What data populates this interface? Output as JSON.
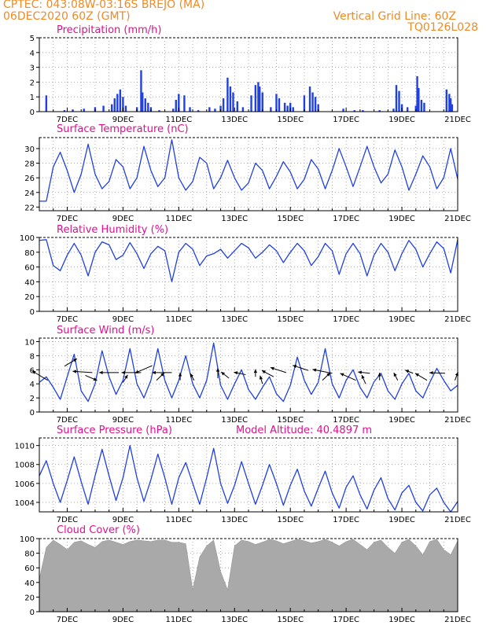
{
  "header": {
    "line1": "CPTEC:   043:08W-03:16S   BREJO (MA)",
    "line2_left": "06DEC2020 60Z (GMT)",
    "line2_right": "Vertical Grid Line: 60Z",
    "line3_right": "TQ0126L028"
  },
  "colors": {
    "header": "#f08a24",
    "title": "#e0108e",
    "series": "#2040e0",
    "cloud": "#a9a9a9",
    "arrow": "#000000"
  },
  "x_axis_labels": [
    "7DEC",
    "9DEC",
    "11DEC",
    "13DEC",
    "15DEC",
    "17DEC",
    "19DEC",
    "21DEC"
  ],
  "chart_data": [
    {
      "type": "bar",
      "title": "Precipitation (mm/h)",
      "ylim": [
        0,
        5
      ],
      "yticks": [
        0,
        1,
        2,
        3,
        4,
        5
      ],
      "x_range_days": [
        6.0,
        21.0
      ],
      "grid": true,
      "values": [
        [
          6.25,
          1.1
        ],
        [
          6.9,
          0.1
        ],
        [
          7.2,
          0.15
        ],
        [
          7.6,
          0.2
        ],
        [
          8.0,
          0.3
        ],
        [
          8.3,
          0.4
        ],
        [
          8.6,
          0.5
        ],
        [
          8.7,
          0.9
        ],
        [
          8.8,
          1.2
        ],
        [
          8.9,
          1.5
        ],
        [
          9.0,
          1.0
        ],
        [
          9.1,
          0.4
        ],
        [
          9.5,
          0.3
        ],
        [
          9.65,
          2.8
        ],
        [
          9.7,
          1.3
        ],
        [
          9.8,
          0.9
        ],
        [
          9.9,
          0.6
        ],
        [
          10.0,
          0.3
        ],
        [
          10.3,
          0.1
        ],
        [
          10.8,
          0.2
        ],
        [
          10.9,
          0.8
        ],
        [
          11.0,
          1.2
        ],
        [
          11.2,
          1.1
        ],
        [
          11.4,
          0.3
        ],
        [
          11.7,
          0.1
        ],
        [
          12.1,
          0.3
        ],
        [
          12.3,
          0.2
        ],
        [
          12.5,
          0.4
        ],
        [
          12.6,
          0.9
        ],
        [
          12.75,
          2.3
        ],
        [
          12.85,
          1.7
        ],
        [
          12.95,
          1.3
        ],
        [
          13.1,
          0.7
        ],
        [
          13.3,
          0.3
        ],
        [
          13.6,
          1.1
        ],
        [
          13.75,
          1.8
        ],
        [
          13.85,
          2.0
        ],
        [
          13.9,
          1.7
        ],
        [
          14.0,
          1.3
        ],
        [
          14.3,
          0.3
        ],
        [
          14.5,
          1.2
        ],
        [
          14.6,
          0.9
        ],
        [
          14.8,
          0.6
        ],
        [
          14.9,
          0.4
        ],
        [
          15.0,
          0.6
        ],
        [
          15.1,
          0.3
        ],
        [
          15.5,
          1.1
        ],
        [
          15.7,
          1.7
        ],
        [
          15.8,
          1.3
        ],
        [
          15.9,
          1.0
        ],
        [
          16.0,
          0.5
        ],
        [
          16.9,
          0.2
        ],
        [
          17.3,
          0.1
        ],
        [
          17.6,
          0.1
        ],
        [
          18.2,
          0.1
        ],
        [
          18.7,
          0.2
        ],
        [
          18.8,
          1.8
        ],
        [
          18.9,
          1.4
        ],
        [
          19.0,
          0.5
        ],
        [
          19.2,
          0.3
        ],
        [
          19.5,
          0.4
        ],
        [
          19.55,
          2.4
        ],
        [
          19.6,
          1.6
        ],
        [
          19.7,
          0.8
        ],
        [
          19.8,
          0.6
        ],
        [
          20.6,
          1.5
        ],
        [
          20.7,
          1.2
        ],
        [
          20.75,
          0.9
        ],
        [
          20.8,
          0.5
        ]
      ]
    },
    {
      "type": "line",
      "title": "Surface Temperature (nC)",
      "ylim": [
        21.5,
        31.5
      ],
      "yticks": [
        22,
        24,
        26,
        28,
        30
      ],
      "grid": true,
      "x": [
        6.0,
        6.25,
        6.5,
        6.75,
        7.0,
        7.25,
        7.5,
        7.75,
        8.0,
        8.25,
        8.5,
        8.75,
        9.0,
        9.25,
        9.5,
        9.75,
        10.0,
        10.25,
        10.5,
        10.75,
        11.0,
        11.25,
        11.5,
        11.75,
        12.0,
        12.25,
        12.5,
        12.75,
        13.0,
        13.25,
        13.5,
        13.75,
        14.0,
        14.25,
        14.5,
        14.75,
        15.0,
        15.25,
        15.5,
        15.75,
        16.0,
        16.25,
        16.5,
        16.75,
        17.0,
        17.25,
        17.5,
        17.75,
        18.0,
        18.25,
        18.5,
        18.75,
        19.0,
        19.25,
        19.5,
        19.75,
        20.0,
        20.25,
        20.5,
        20.75,
        21.0
      ],
      "y": [
        22.8,
        22.8,
        27.5,
        29.5,
        27.0,
        24.0,
        26.5,
        30.6,
        26.5,
        24.5,
        25.5,
        28.5,
        27.5,
        24.5,
        26.0,
        30.3,
        27.0,
        24.8,
        26.0,
        31.2,
        26.0,
        24.3,
        25.5,
        28.8,
        28.0,
        24.5,
        26.0,
        28.4,
        26.0,
        24.3,
        25.3,
        28.0,
        27.0,
        24.5,
        26.2,
        28.2,
        26.8,
        24.5,
        25.8,
        28.5,
        27.2,
        24.5,
        27.0,
        30.0,
        27.5,
        24.8,
        27.5,
        30.3,
        27.5,
        25.3,
        26.5,
        29.8,
        27.5,
        24.3,
        26.5,
        29.0,
        27.5,
        24.5,
        26.0,
        30.0,
        25.8
      ]
    },
    {
      "type": "line",
      "title": "Relative Humidity (%)",
      "ylim": [
        0,
        100
      ],
      "yticks": [
        0,
        20,
        40,
        60,
        80,
        100
      ],
      "grid": true,
      "x": [
        6.0,
        6.25,
        6.5,
        6.75,
        7.0,
        7.25,
        7.5,
        7.75,
        8.0,
        8.25,
        8.5,
        8.75,
        9.0,
        9.25,
        9.5,
        9.75,
        10.0,
        10.25,
        10.5,
        10.75,
        11.0,
        11.25,
        11.5,
        11.75,
        12.0,
        12.25,
        12.5,
        12.75,
        13.0,
        13.25,
        13.5,
        13.75,
        14.0,
        14.25,
        14.5,
        14.75,
        15.0,
        15.25,
        15.5,
        15.75,
        16.0,
        16.25,
        16.5,
        16.75,
        17.0,
        17.25,
        17.5,
        17.75,
        18.0,
        18.25,
        18.5,
        18.75,
        19.0,
        19.25,
        19.5,
        19.75,
        20.0,
        20.25,
        20.5,
        20.75,
        21.0
      ],
      "y": [
        96,
        97,
        62,
        55,
        76,
        92,
        76,
        48,
        80,
        94,
        90,
        70,
        76,
        93,
        78,
        58,
        78,
        88,
        82,
        40,
        80,
        92,
        84,
        62,
        75,
        78,
        84,
        72,
        82,
        92,
        86,
        72,
        80,
        90,
        82,
        66,
        80,
        92,
        82,
        62,
        74,
        92,
        82,
        50,
        78,
        92,
        78,
        48,
        76,
        92,
        80,
        55,
        78,
        96,
        84,
        60,
        78,
        94,
        85,
        52,
        97
      ]
    },
    {
      "type": "line",
      "title": "Surface Wind (m/s)",
      "ylim": [
        0,
        10.5
      ],
      "yticks": [
        0,
        2,
        4,
        6,
        8,
        10
      ],
      "grid": true,
      "x": [
        6.0,
        6.25,
        6.5,
        6.75,
        7.0,
        7.25,
        7.5,
        7.75,
        8.0,
        8.25,
        8.5,
        8.75,
        9.0,
        9.25,
        9.5,
        9.75,
        10.0,
        10.25,
        10.5,
        10.75,
        11.0,
        11.25,
        11.5,
        11.75,
        12.0,
        12.25,
        12.5,
        12.75,
        13.0,
        13.25,
        13.5,
        13.75,
        14.0,
        14.25,
        14.5,
        14.75,
        15.0,
        15.25,
        15.5,
        15.75,
        16.0,
        16.25,
        16.5,
        16.75,
        17.0,
        17.25,
        17.5,
        17.75,
        18.0,
        18.25,
        18.5,
        18.75,
        19.0,
        19.25,
        19.5,
        19.75,
        20.0,
        20.25,
        20.5,
        20.75,
        21.0
      ],
      "y": [
        4.2,
        5.0,
        3.5,
        1.8,
        5.0,
        8.2,
        3.0,
        1.5,
        4.0,
        8.7,
        5.0,
        2.5,
        4.5,
        9.0,
        4.0,
        2.0,
        4.5,
        9.0,
        4.5,
        2.0,
        4.5,
        8.0,
        4.0,
        2.0,
        4.5,
        9.8,
        3.8,
        1.8,
        4.0,
        6.0,
        3.2,
        1.8,
        3.5,
        5.0,
        2.6,
        1.5,
        3.8,
        7.8,
        4.5,
        2.5,
        4.2,
        9.0,
        4.0,
        2.0,
        4.5,
        6.0,
        3.5,
        2.0,
        4.3,
        5.5,
        3.0,
        1.8,
        4.0,
        5.5,
        3.0,
        2.0,
        4.2,
        6.2,
        4.5,
        3.0,
        3.8
      ],
      "arrows": [
        {
          "x": 6.3,
          "y": 4.5,
          "u": 2.0,
          "v": 1.5
        },
        {
          "x": 6.9,
          "y": 6.5,
          "u": -1.6,
          "v": 1.2
        },
        {
          "x": 7.65,
          "y": 5.2,
          "u": -1.5,
          "v": -0.8
        },
        {
          "x": 7.9,
          "y": 5.6,
          "u": 2.5,
          "v": 0.2
        },
        {
          "x": 8.85,
          "y": 5.6,
          "u": 2.5,
          "v": 0.0
        },
        {
          "x": 9.0,
          "y": 4.2,
          "u": -0.6,
          "v": 1.2
        },
        {
          "x": 9.65,
          "y": 5.6,
          "u": 2.5,
          "v": 0.0
        },
        {
          "x": 10.05,
          "y": 6.6,
          "u": 2.2,
          "v": -1.2
        },
        {
          "x": 10.2,
          "y": 4.5,
          "u": -1.0,
          "v": 1.2
        },
        {
          "x": 10.75,
          "y": 5.6,
          "u": 2.5,
          "v": 0.0
        },
        {
          "x": 11.05,
          "y": 4.5,
          "u": 0.0,
          "v": 1.2
        },
        {
          "x": 11.55,
          "y": 4.5,
          "u": 0.5,
          "v": 1.1
        },
        {
          "x": 12.4,
          "y": 4.8,
          "u": 0.0,
          "v": 1.6
        },
        {
          "x": 12.8,
          "y": 4.8,
          "u": 1.0,
          "v": 1.0
        },
        {
          "x": 13.4,
          "y": 5.3,
          "u": 1.5,
          "v": 0.4
        },
        {
          "x": 13.75,
          "y": 5.0,
          "u": 0.0,
          "v": 1.2
        },
        {
          "x": 14.0,
          "y": 4.0,
          "u": 0.3,
          "v": 1.3
        },
        {
          "x": 14.4,
          "y": 5.0,
          "u": 1.5,
          "v": 1.0
        },
        {
          "x": 14.85,
          "y": 5.6,
          "u": 2.0,
          "v": 0.8
        },
        {
          "x": 15.65,
          "y": 5.9,
          "u": 2.0,
          "v": 0.8
        },
        {
          "x": 16.15,
          "y": 4.5,
          "u": -1.0,
          "v": 1.2
        },
        {
          "x": 16.5,
          "y": 5.5,
          "u": 2.5,
          "v": 0.6
        },
        {
          "x": 17.35,
          "y": 4.5,
          "u": 2.0,
          "v": 1.1
        },
        {
          "x": 17.85,
          "y": 5.5,
          "u": 1.5,
          "v": 0.2
        },
        {
          "x": 17.7,
          "y": 4.0,
          "u": 0.5,
          "v": 1.4
        },
        {
          "x": 18.2,
          "y": 4.5,
          "u": 0.0,
          "v": 1.2
        },
        {
          "x": 18.85,
          "y": 4.5,
          "u": 0.5,
          "v": 1.2
        },
        {
          "x": 19.4,
          "y": 5.5,
          "u": 1.0,
          "v": 0.5
        },
        {
          "x": 19.9,
          "y": 4.5,
          "u": 1.5,
          "v": 1.1
        },
        {
          "x": 20.55,
          "y": 5.5,
          "u": 2.0,
          "v": 0.1
        },
        {
          "x": 20.9,
          "y": 4.5,
          "u": -0.4,
          "v": 1.3
        }
      ]
    },
    {
      "type": "line",
      "title": "Surface Pressure (hPa)",
      "annotation": "Model Altitude: 40.4897 m",
      "ylim": [
        1003.0,
        1010.8
      ],
      "yticks": [
        1004,
        1006,
        1008,
        1010
      ],
      "grid": true,
      "x": [
        6.0,
        6.25,
        6.5,
        6.75,
        7.0,
        7.25,
        7.5,
        7.75,
        8.0,
        8.25,
        8.5,
        8.75,
        9.0,
        9.25,
        9.5,
        9.75,
        10.0,
        10.25,
        10.5,
        10.75,
        11.0,
        11.25,
        11.5,
        11.75,
        12.0,
        12.25,
        12.5,
        12.75,
        13.0,
        13.25,
        13.5,
        13.75,
        14.0,
        14.25,
        14.5,
        14.75,
        15.0,
        15.25,
        15.5,
        15.75,
        16.0,
        16.25,
        16.5,
        16.75,
        17.0,
        17.25,
        17.5,
        17.75,
        18.0,
        18.25,
        18.5,
        18.75,
        19.0,
        19.25,
        19.5,
        19.75,
        20.0,
        20.25,
        20.5,
        20.75,
        21.0
      ],
      "y": [
        1006.8,
        1008.4,
        1006.0,
        1004.0,
        1006.3,
        1008.8,
        1006.2,
        1003.8,
        1006.8,
        1009.6,
        1006.8,
        1004.2,
        1006.6,
        1010.0,
        1006.6,
        1004.1,
        1006.4,
        1009.1,
        1006.6,
        1003.8,
        1006.6,
        1008.2,
        1006.0,
        1003.8,
        1006.6,
        1009.7,
        1006.0,
        1003.9,
        1005.8,
        1008.3,
        1006.0,
        1003.8,
        1005.8,
        1008.0,
        1006.0,
        1003.7,
        1005.8,
        1007.5,
        1005.2,
        1003.6,
        1005.5,
        1007.3,
        1005.0,
        1003.4,
        1005.6,
        1006.8,
        1004.8,
        1003.3,
        1005.3,
        1006.6,
        1004.4,
        1003.2,
        1005.0,
        1005.8,
        1004.0,
        1003.1,
        1004.8,
        1005.5,
        1004.0,
        1003.0,
        1004.1
      ]
    },
    {
      "type": "area",
      "title": "Cloud Cover (%)",
      "ylim": [
        0,
        100
      ],
      "yticks": [
        0,
        20,
        40,
        60,
        80,
        100
      ],
      "grid": true,
      "x": [
        6.0,
        6.25,
        6.5,
        6.75,
        7.0,
        7.25,
        7.5,
        7.75,
        8.0,
        8.25,
        8.5,
        8.75,
        9.0,
        9.25,
        9.5,
        9.75,
        10.0,
        10.25,
        10.5,
        10.75,
        11.0,
        11.25,
        11.5,
        11.75,
        12.0,
        12.25,
        12.5,
        12.75,
        13.0,
        13.25,
        13.5,
        13.75,
        14.0,
        14.25,
        14.5,
        14.75,
        15.0,
        15.25,
        15.5,
        15.75,
        16.0,
        16.25,
        16.5,
        16.75,
        17.0,
        17.25,
        17.5,
        17.75,
        18.0,
        18.25,
        18.5,
        18.75,
        19.0,
        19.25,
        19.5,
        19.75,
        20.0,
        20.25,
        20.5,
        20.75,
        21.0
      ],
      "y": [
        45,
        88,
        98,
        92,
        85,
        95,
        97,
        92,
        88,
        96,
        98,
        95,
        92,
        96,
        98,
        97,
        96,
        98,
        98,
        95,
        95,
        93,
        30,
        75,
        90,
        98,
        55,
        30,
        90,
        98,
        96,
        92,
        95,
        99,
        97,
        93,
        96,
        99,
        97,
        94,
        96,
        99,
        95,
        90,
        96,
        99,
        92,
        85,
        95,
        98,
        88,
        80,
        95,
        99,
        90,
        78,
        96,
        99,
        85,
        78,
        97
      ]
    }
  ]
}
